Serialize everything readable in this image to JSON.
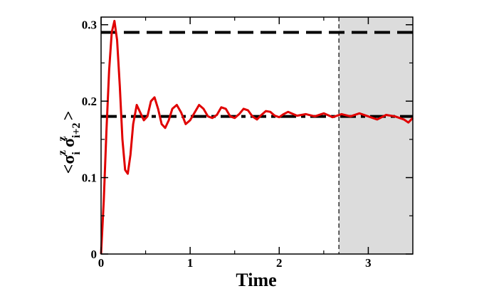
{
  "chart_data": {
    "type": "line",
    "xlabel": "Time",
    "ylabel": {
      "open": "<",
      "sigma1": "σ",
      "sup1": "z",
      "sub1": "i",
      "sigma2": "σ",
      "sup2": "z",
      "sub2": "i+2",
      "close": ">"
    },
    "xlim": [
      0,
      3.5
    ],
    "ylim": [
      0,
      0.31
    ],
    "x_ticks": [
      0,
      1,
      2,
      3
    ],
    "x_tick_labels": [
      "0",
      "1",
      "2",
      "3"
    ],
    "y_ticks": [
      0,
      0.1,
      0.2,
      0.3
    ],
    "y_tick_labels": [
      "0",
      "0.1",
      "0.2",
      "0.3"
    ],
    "grid": false,
    "series": [
      {
        "style": "solid",
        "color": "#e00000",
        "x": [
          0,
          0.03,
          0.06,
          0.09,
          0.12,
          0.15,
          0.18,
          0.21,
          0.24,
          0.27,
          0.3,
          0.33,
          0.36,
          0.4,
          0.44,
          0.48,
          0.52,
          0.56,
          0.6,
          0.64,
          0.68,
          0.72,
          0.76,
          0.8,
          0.85,
          0.9,
          0.95,
          1.0,
          1.05,
          1.1,
          1.15,
          1.2,
          1.25,
          1.3,
          1.35,
          1.4,
          1.45,
          1.5,
          1.55,
          1.6,
          1.65,
          1.7,
          1.75,
          1.8,
          1.85,
          1.9,
          1.95,
          2.0,
          2.05,
          2.1,
          2.2,
          2.3,
          2.4,
          2.5,
          2.6,
          2.7,
          2.8,
          2.9,
          3.0,
          3.1,
          3.2,
          3.3,
          3.4,
          3.45,
          3.5
        ],
        "y": [
          0,
          0.07,
          0.16,
          0.24,
          0.29,
          0.305,
          0.28,
          0.22,
          0.15,
          0.11,
          0.105,
          0.13,
          0.17,
          0.195,
          0.185,
          0.175,
          0.18,
          0.2,
          0.205,
          0.19,
          0.17,
          0.165,
          0.175,
          0.19,
          0.195,
          0.185,
          0.17,
          0.175,
          0.185,
          0.195,
          0.19,
          0.18,
          0.178,
          0.182,
          0.192,
          0.19,
          0.18,
          0.178,
          0.183,
          0.19,
          0.188,
          0.18,
          0.176,
          0.182,
          0.187,
          0.186,
          0.181,
          0.179,
          0.183,
          0.186,
          0.181,
          0.183,
          0.18,
          0.184,
          0.179,
          0.183,
          0.18,
          0.184,
          0.18,
          0.176,
          0.182,
          0.18,
          0.176,
          0.172,
          0.178
        ]
      }
    ],
    "hlines": [
      {
        "y": 0.29,
        "style": "dashed"
      },
      {
        "y": 0.18,
        "style": "dashdot"
      }
    ],
    "vline": {
      "x": 2.67,
      "style": "dashed"
    },
    "shaded_region": {
      "x": [
        2.67,
        3.5
      ],
      "color": "#dcdcdc"
    }
  }
}
